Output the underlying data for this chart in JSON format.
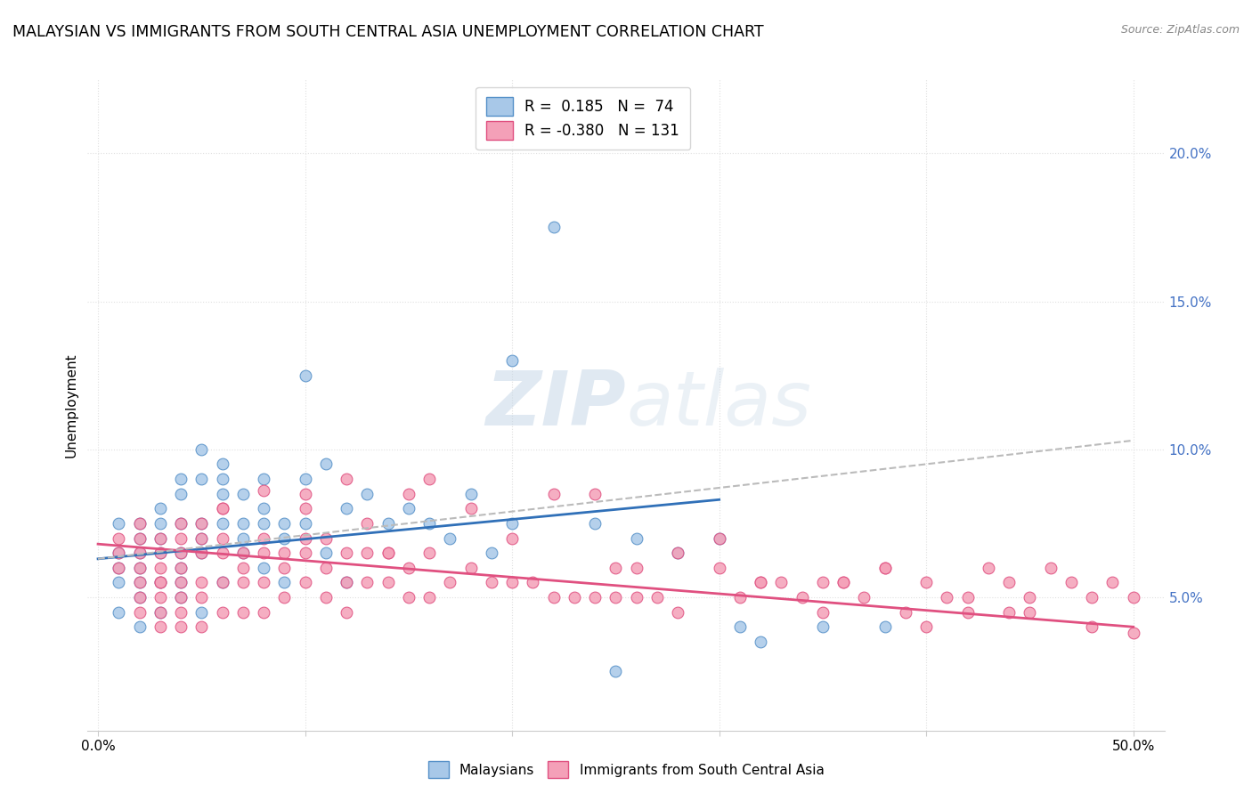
{
  "title": "MALAYSIAN VS IMMIGRANTS FROM SOUTH CENTRAL ASIA UNEMPLOYMENT CORRELATION CHART",
  "source": "Source: ZipAtlas.com",
  "ylabel": "Unemployment",
  "ytick_labels": [
    "5.0%",
    "10.0%",
    "15.0%",
    "20.0%"
  ],
  "ytick_values": [
    0.05,
    0.1,
    0.15,
    0.2
  ],
  "xlim": [
    -0.005,
    0.515
  ],
  "ylim": [
    0.005,
    0.225
  ],
  "blue_color": "#a8c8e8",
  "pink_color": "#f4a0b8",
  "blue_edge_color": "#5590c8",
  "pink_edge_color": "#e05080",
  "blue_line_color": "#3070b8",
  "pink_line_color": "#e05080",
  "dashed_line_color": "#bbbbbb",
  "background_color": "#ffffff",
  "grid_color": "#e0e0e0",
  "title_fontsize": 12.5,
  "axis_fontsize": 11,
  "tick_fontsize": 11,
  "right_tick_color": "#4472c4",
  "blue_trend_x": [
    0.0,
    0.3
  ],
  "blue_trend_y": [
    0.063,
    0.083
  ],
  "pink_trend_x": [
    0.0,
    0.5
  ],
  "pink_trend_y": [
    0.068,
    0.04
  ],
  "dashed_trend_x": [
    0.0,
    0.5
  ],
  "dashed_trend_y": [
    0.063,
    0.103
  ],
  "blue_scatter_x": [
    0.01,
    0.01,
    0.01,
    0.01,
    0.01,
    0.02,
    0.02,
    0.02,
    0.02,
    0.02,
    0.02,
    0.02,
    0.03,
    0.03,
    0.03,
    0.03,
    0.03,
    0.03,
    0.04,
    0.04,
    0.04,
    0.04,
    0.04,
    0.04,
    0.04,
    0.05,
    0.05,
    0.05,
    0.05,
    0.05,
    0.05,
    0.06,
    0.06,
    0.06,
    0.06,
    0.06,
    0.07,
    0.07,
    0.07,
    0.07,
    0.08,
    0.08,
    0.08,
    0.08,
    0.09,
    0.09,
    0.09,
    0.1,
    0.1,
    0.1,
    0.11,
    0.11,
    0.12,
    0.12,
    0.13,
    0.14,
    0.15,
    0.16,
    0.17,
    0.18,
    0.19,
    0.2,
    0.22,
    0.24,
    0.26,
    0.28,
    0.3,
    0.31,
    0.32,
    0.35,
    0.38,
    0.2,
    0.25
  ],
  "blue_scatter_y": [
    0.065,
    0.075,
    0.055,
    0.045,
    0.06,
    0.06,
    0.05,
    0.07,
    0.04,
    0.075,
    0.065,
    0.055,
    0.075,
    0.07,
    0.065,
    0.055,
    0.045,
    0.08,
    0.085,
    0.075,
    0.065,
    0.06,
    0.055,
    0.05,
    0.09,
    0.1,
    0.09,
    0.075,
    0.07,
    0.065,
    0.045,
    0.09,
    0.085,
    0.075,
    0.055,
    0.095,
    0.085,
    0.075,
    0.07,
    0.065,
    0.09,
    0.08,
    0.075,
    0.06,
    0.075,
    0.07,
    0.055,
    0.125,
    0.09,
    0.075,
    0.095,
    0.065,
    0.08,
    0.055,
    0.085,
    0.075,
    0.08,
    0.075,
    0.07,
    0.085,
    0.065,
    0.075,
    0.175,
    0.075,
    0.07,
    0.065,
    0.07,
    0.04,
    0.035,
    0.04,
    0.04,
    0.13,
    0.025
  ],
  "pink_scatter_x": [
    0.01,
    0.01,
    0.01,
    0.02,
    0.02,
    0.02,
    0.02,
    0.02,
    0.02,
    0.03,
    0.03,
    0.03,
    0.03,
    0.03,
    0.03,
    0.03,
    0.04,
    0.04,
    0.04,
    0.04,
    0.04,
    0.04,
    0.04,
    0.05,
    0.05,
    0.05,
    0.05,
    0.05,
    0.05,
    0.06,
    0.06,
    0.06,
    0.06,
    0.06,
    0.07,
    0.07,
    0.07,
    0.07,
    0.08,
    0.08,
    0.08,
    0.08,
    0.09,
    0.09,
    0.09,
    0.1,
    0.1,
    0.1,
    0.1,
    0.11,
    0.11,
    0.11,
    0.12,
    0.12,
    0.12,
    0.13,
    0.13,
    0.13,
    0.14,
    0.14,
    0.15,
    0.15,
    0.16,
    0.16,
    0.17,
    0.18,
    0.19,
    0.2,
    0.21,
    0.22,
    0.23,
    0.24,
    0.25,
    0.26,
    0.27,
    0.28,
    0.3,
    0.31,
    0.32,
    0.33,
    0.34,
    0.35,
    0.36,
    0.37,
    0.38,
    0.39,
    0.4,
    0.41,
    0.42,
    0.43,
    0.44,
    0.45,
    0.46,
    0.47,
    0.48,
    0.49,
    0.5,
    0.22,
    0.28,
    0.35,
    0.42,
    0.48,
    0.15,
    0.3,
    0.38,
    0.45,
    0.12,
    0.2,
    0.25,
    0.08,
    0.18,
    0.32,
    0.4,
    0.5,
    0.36,
    0.44,
    0.26,
    0.24,
    0.14,
    0.16,
    0.1,
    0.06,
    0.04,
    0.02,
    0.03
  ],
  "pink_scatter_y": [
    0.065,
    0.06,
    0.07,
    0.075,
    0.07,
    0.065,
    0.06,
    0.055,
    0.05,
    0.07,
    0.065,
    0.06,
    0.055,
    0.05,
    0.045,
    0.04,
    0.07,
    0.065,
    0.06,
    0.055,
    0.05,
    0.045,
    0.04,
    0.07,
    0.065,
    0.055,
    0.05,
    0.04,
    0.075,
    0.08,
    0.065,
    0.055,
    0.045,
    0.07,
    0.065,
    0.06,
    0.055,
    0.045,
    0.07,
    0.065,
    0.055,
    0.045,
    0.065,
    0.06,
    0.05,
    0.08,
    0.07,
    0.065,
    0.055,
    0.07,
    0.06,
    0.05,
    0.065,
    0.055,
    0.045,
    0.065,
    0.055,
    0.075,
    0.065,
    0.055,
    0.06,
    0.05,
    0.065,
    0.05,
    0.055,
    0.06,
    0.055,
    0.055,
    0.055,
    0.05,
    0.05,
    0.05,
    0.05,
    0.05,
    0.05,
    0.045,
    0.06,
    0.05,
    0.055,
    0.055,
    0.05,
    0.045,
    0.055,
    0.05,
    0.06,
    0.045,
    0.055,
    0.05,
    0.045,
    0.06,
    0.055,
    0.05,
    0.06,
    0.055,
    0.05,
    0.055,
    0.05,
    0.085,
    0.065,
    0.055,
    0.05,
    0.04,
    0.085,
    0.07,
    0.06,
    0.045,
    0.09,
    0.07,
    0.06,
    0.086,
    0.08,
    0.055,
    0.04,
    0.038,
    0.055,
    0.045,
    0.06,
    0.085,
    0.065,
    0.09,
    0.085,
    0.08,
    0.075,
    0.045,
    0.055
  ]
}
